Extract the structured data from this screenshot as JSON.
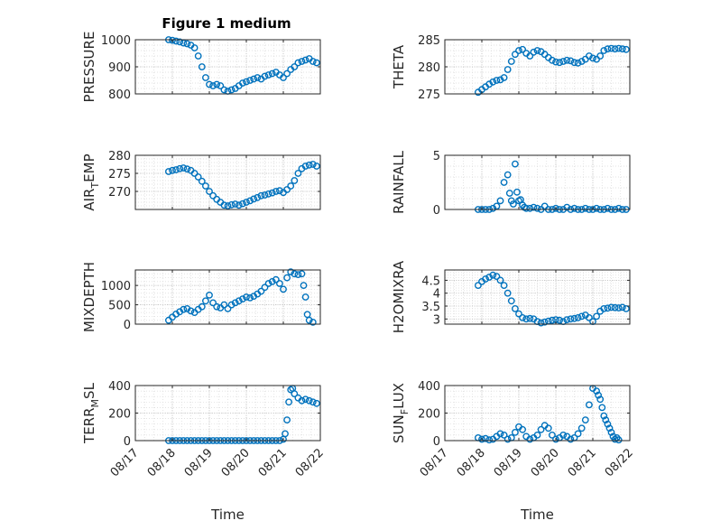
{
  "figure": {
    "title": "Figure 1 medium"
  },
  "chart_data": [
    {
      "type": "scatter",
      "ylabel": "PRESSURE",
      "ylim": [
        800,
        1000
      ],
      "yticks": [
        800,
        900,
        1000
      ],
      "ytick_labels": [
        "800",
        "900",
        "1000"
      ],
      "xlim": [
        0,
        5
      ],
      "color": "#0072BD",
      "title": "Figure 1 medium",
      "x": [
        0.9,
        1.0,
        1.1,
        1.2,
        1.3,
        1.4,
        1.5,
        1.6,
        1.7,
        1.8,
        1.9,
        2.0,
        2.1,
        2.2,
        2.3,
        2.4,
        2.5,
        2.6,
        2.7,
        2.8,
        2.9,
        3.0,
        3.1,
        3.2,
        3.3,
        3.4,
        3.5,
        3.6,
        3.7,
        3.8,
        3.9,
        4.0,
        4.1,
        4.2,
        4.3,
        4.4,
        4.5,
        4.6,
        4.7,
        4.8,
        4.9
      ],
      "y": [
        1000,
        998,
        995,
        992,
        988,
        985,
        980,
        970,
        940,
        900,
        860,
        835,
        830,
        835,
        830,
        815,
        810,
        815,
        820,
        830,
        840,
        845,
        850,
        855,
        860,
        855,
        865,
        870,
        875,
        880,
        870,
        860,
        875,
        890,
        900,
        915,
        920,
        925,
        930,
        920,
        915
      ]
    },
    {
      "type": "scatter",
      "ylabel": "THETA",
      "ylim": [
        275,
        285
      ],
      "yticks": [
        275,
        280,
        285
      ],
      "ytick_labels": [
        "275",
        "280",
        "285"
      ],
      "xlim": [
        0,
        5
      ],
      "color": "#0072BD",
      "x": [
        0.9,
        1.0,
        1.1,
        1.2,
        1.3,
        1.4,
        1.5,
        1.6,
        1.7,
        1.8,
        1.9,
        2.0,
        2.1,
        2.2,
        2.3,
        2.4,
        2.5,
        2.6,
        2.7,
        2.8,
        2.9,
        3.0,
        3.1,
        3.2,
        3.3,
        3.4,
        3.5,
        3.6,
        3.7,
        3.8,
        3.9,
        4.0,
        4.1,
        4.2,
        4.3,
        4.4,
        4.5,
        4.6,
        4.7,
        4.8,
        4.9
      ],
      "y": [
        275.3,
        275.8,
        276.3,
        276.8,
        277.2,
        277.5,
        277.6,
        278.0,
        279.5,
        281.0,
        282.3,
        283.0,
        283.2,
        282.5,
        282.0,
        282.7,
        283.0,
        282.8,
        282.3,
        281.7,
        281.2,
        280.9,
        280.8,
        281.0,
        281.2,
        281.1,
        280.8,
        280.7,
        281.0,
        281.4,
        282.0,
        281.6,
        281.4,
        282.0,
        283.0,
        283.3,
        283.4,
        283.3,
        283.4,
        283.3,
        283.2
      ]
    },
    {
      "type": "scatter",
      "ylabel": "AIR_TEMP",
      "ylim": [
        265,
        280
      ],
      "yticks": [
        270,
        275,
        280
      ],
      "ytick_labels": [
        "270",
        "275",
        "280"
      ],
      "xlim": [
        0,
        5
      ],
      "color": "#0072BD",
      "x": [
        0.9,
        1.0,
        1.1,
        1.2,
        1.3,
        1.4,
        1.5,
        1.6,
        1.7,
        1.8,
        1.9,
        2.0,
        2.1,
        2.2,
        2.3,
        2.4,
        2.5,
        2.6,
        2.7,
        2.8,
        2.9,
        3.0,
        3.1,
        3.2,
        3.3,
        3.4,
        3.5,
        3.6,
        3.7,
        3.8,
        3.9,
        4.0,
        4.1,
        4.2,
        4.3,
        4.4,
        4.5,
        4.6,
        4.7,
        4.8,
        4.9
      ],
      "y": [
        275.5,
        275.8,
        276.0,
        276.3,
        276.5,
        276.2,
        275.8,
        275.0,
        274.0,
        272.8,
        271.5,
        270.0,
        268.8,
        267.8,
        267.0,
        266.2,
        266.0,
        266.3,
        266.5,
        266.2,
        266.6,
        267.0,
        267.4,
        267.9,
        268.3,
        268.8,
        269.0,
        269.3,
        269.6,
        270.0,
        270.2,
        269.7,
        270.5,
        271.5,
        273.0,
        275.0,
        276.3,
        277.0,
        277.3,
        277.5,
        277.0
      ]
    },
    {
      "type": "scatter",
      "ylabel": "RAINFALL",
      "ylim": [
        0,
        5
      ],
      "yticks": [
        0,
        5
      ],
      "ytick_labels": [
        "0",
        "5"
      ],
      "xlim": [
        0,
        5
      ],
      "color": "#0072BD",
      "x": [
        0.9,
        1.0,
        1.1,
        1.2,
        1.3,
        1.4,
        1.5,
        1.6,
        1.7,
        1.75,
        1.8,
        1.85,
        1.9,
        1.95,
        2.0,
        2.05,
        2.1,
        2.15,
        2.2,
        2.3,
        2.4,
        2.5,
        2.6,
        2.7,
        2.8,
        2.9,
        3.0,
        3.1,
        3.2,
        3.3,
        3.4,
        3.5,
        3.6,
        3.7,
        3.8,
        3.9,
        4.0,
        4.1,
        4.2,
        4.3,
        4.4,
        4.5,
        4.6,
        4.7,
        4.8,
        4.9
      ],
      "y": [
        0,
        0,
        0,
        0,
        0.1,
        0.3,
        0.8,
        2.5,
        3.2,
        1.5,
        0.8,
        0.5,
        4.2,
        1.6,
        0.8,
        0.9,
        0.4,
        0.2,
        0.1,
        0.1,
        0.2,
        0.1,
        0,
        0.3,
        0,
        0,
        0.1,
        0,
        0,
        0.2,
        0,
        0.1,
        0,
        0,
        0.1,
        0,
        0,
        0.1,
        0,
        0,
        0.1,
        0,
        0,
        0.1,
        0,
        0
      ]
    },
    {
      "type": "scatter",
      "ylabel": "MIXDEPTH",
      "ylim": [
        0,
        1400
      ],
      "yticks": [
        0,
        500,
        1000
      ],
      "ytick_labels": [
        "0",
        "500",
        "1000"
      ],
      "xlim": [
        0,
        5
      ],
      "color": "#0072BD",
      "x": [
        0.9,
        1.0,
        1.1,
        1.2,
        1.3,
        1.4,
        1.5,
        1.6,
        1.7,
        1.8,
        1.9,
        2.0,
        2.1,
        2.2,
        2.3,
        2.4,
        2.5,
        2.6,
        2.7,
        2.8,
        2.9,
        3.0,
        3.1,
        3.2,
        3.3,
        3.4,
        3.5,
        3.6,
        3.7,
        3.8,
        3.9,
        4.0,
        4.1,
        4.2,
        4.3,
        4.4,
        4.5,
        4.55,
        4.6,
        4.65,
        4.7,
        4.8
      ],
      "y": [
        100,
        180,
        260,
        320,
        380,
        400,
        340,
        300,
        380,
        450,
        600,
        750,
        550,
        450,
        420,
        500,
        400,
        500,
        550,
        600,
        650,
        700,
        680,
        720,
        780,
        850,
        950,
        1050,
        1100,
        1150,
        1050,
        900,
        1200,
        1350,
        1300,
        1280,
        1300,
        1000,
        700,
        250,
        100,
        50
      ]
    },
    {
      "type": "scatter",
      "ylabel": "H2OMIXRA",
      "ylim": [
        2.8,
        4.9
      ],
      "yticks": [
        3,
        3.5,
        4,
        4.5
      ],
      "ytick_labels": [
        "3",
        "3.5",
        "4",
        "4.5"
      ],
      "xlim": [
        0,
        5
      ],
      "color": "#0072BD",
      "x": [
        0.9,
        1.0,
        1.1,
        1.2,
        1.3,
        1.4,
        1.5,
        1.6,
        1.7,
        1.8,
        1.9,
        2.0,
        2.1,
        2.2,
        2.3,
        2.4,
        2.5,
        2.6,
        2.7,
        2.8,
        2.9,
        3.0,
        3.1,
        3.2,
        3.3,
        3.4,
        3.5,
        3.6,
        3.7,
        3.8,
        3.9,
        4.0,
        4.1,
        4.2,
        4.3,
        4.4,
        4.5,
        4.6,
        4.7,
        4.8,
        4.9
      ],
      "y": [
        4.3,
        4.45,
        4.55,
        4.62,
        4.7,
        4.65,
        4.5,
        4.3,
        4.0,
        3.7,
        3.4,
        3.2,
        3.05,
        3.0,
        3.02,
        3.0,
        2.9,
        2.85,
        2.88,
        2.92,
        2.95,
        2.97,
        2.95,
        2.9,
        2.97,
        3.0,
        3.02,
        3.05,
        3.1,
        3.15,
        3.05,
        2.9,
        3.1,
        3.3,
        3.4,
        3.42,
        3.45,
        3.44,
        3.43,
        3.45,
        3.4
      ]
    },
    {
      "type": "scatter",
      "ylabel": "TERR_MSL",
      "ylim": [
        0,
        400
      ],
      "yticks": [
        0,
        200,
        400
      ],
      "ytick_labels": [
        "0",
        "200",
        "400"
      ],
      "xlim": [
        0,
        5
      ],
      "color": "#0072BD",
      "xlabel": "Time",
      "xticks": [
        0,
        1,
        2,
        3,
        4,
        5
      ],
      "xtick_labels": [
        "08/17",
        "08/18",
        "08/19",
        "08/20",
        "08/21",
        "08/22"
      ],
      "x": [
        0.9,
        1.0,
        1.1,
        1.2,
        1.3,
        1.4,
        1.5,
        1.6,
        1.7,
        1.8,
        1.9,
        2.0,
        2.1,
        2.2,
        2.3,
        2.4,
        2.5,
        2.6,
        2.7,
        2.8,
        2.9,
        3.0,
        3.1,
        3.2,
        3.3,
        3.4,
        3.5,
        3.6,
        3.7,
        3.8,
        3.9,
        4.0,
        4.05,
        4.1,
        4.15,
        4.2,
        4.25,
        4.3,
        4.4,
        4.5,
        4.6,
        4.7,
        4.8,
        4.9
      ],
      "y": [
        0,
        0,
        0,
        0,
        0,
        0,
        0,
        0,
        0,
        0,
        0,
        0,
        0,
        0,
        0,
        0,
        0,
        0,
        0,
        0,
        0,
        0,
        0,
        0,
        0,
        0,
        0,
        0,
        0,
        0,
        0,
        10,
        50,
        150,
        280,
        370,
        380,
        340,
        310,
        290,
        300,
        290,
        280,
        270
      ]
    },
    {
      "type": "scatter",
      "ylabel": "SUN_FLUX",
      "ylim": [
        0,
        400
      ],
      "yticks": [
        0,
        200,
        400
      ],
      "ytick_labels": [
        "0",
        "200",
        "400"
      ],
      "xlim": [
        0,
        5
      ],
      "color": "#0072BD",
      "xlabel": "Time",
      "xticks": [
        0,
        1,
        2,
        3,
        4,
        5
      ],
      "xtick_labels": [
        "08/17",
        "08/18",
        "08/19",
        "08/20",
        "08/21",
        "08/22"
      ],
      "x": [
        0.9,
        1.0,
        1.1,
        1.2,
        1.3,
        1.4,
        1.5,
        1.6,
        1.7,
        1.8,
        1.9,
        2.0,
        2.1,
        2.2,
        2.3,
        2.4,
        2.5,
        2.6,
        2.7,
        2.8,
        2.9,
        3.0,
        3.1,
        3.2,
        3.3,
        3.4,
        3.5,
        3.6,
        3.7,
        3.8,
        3.9,
        4.0,
        4.1,
        4.15,
        4.2,
        4.25,
        4.3,
        4.35,
        4.4,
        4.45,
        4.5,
        4.55,
        4.6,
        4.65,
        4.7
      ],
      "y": [
        20,
        10,
        15,
        5,
        10,
        30,
        50,
        40,
        10,
        20,
        60,
        100,
        80,
        30,
        10,
        20,
        40,
        80,
        110,
        90,
        40,
        10,
        20,
        40,
        30,
        10,
        20,
        50,
        90,
        150,
        260,
        380,
        360,
        330,
        300,
        240,
        180,
        150,
        120,
        90,
        60,
        30,
        10,
        20,
        5
      ]
    }
  ]
}
